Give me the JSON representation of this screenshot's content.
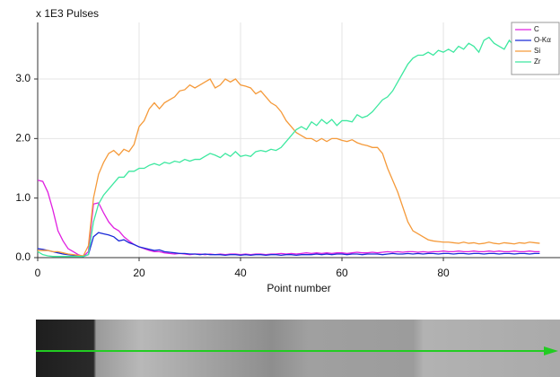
{
  "chart_data": {
    "type": "line",
    "y_axis_label": "x 1E3 Pulses",
    "x_axis_label": "Point number",
    "x": [
      0,
      1,
      2,
      3,
      4,
      5,
      6,
      7,
      8,
      9,
      10,
      11,
      12,
      13,
      14,
      15,
      16,
      17,
      18,
      19,
      20,
      21,
      22,
      23,
      24,
      25,
      26,
      27,
      28,
      29,
      30,
      31,
      32,
      33,
      34,
      35,
      36,
      37,
      38,
      39,
      40,
      41,
      42,
      43,
      44,
      45,
      46,
      47,
      48,
      49,
      50,
      51,
      52,
      53,
      54,
      55,
      56,
      57,
      58,
      59,
      60,
      61,
      62,
      63,
      64,
      65,
      66,
      67,
      68,
      69,
      70,
      71,
      72,
      73,
      74,
      75,
      76,
      77,
      78,
      79,
      80,
      81,
      82,
      83,
      84,
      85,
      86,
      87,
      88,
      89,
      90,
      91,
      92,
      93,
      94,
      95,
      96,
      97,
      98,
      99
    ],
    "xlim": [
      0,
      103
    ],
    "xticks": [
      0,
      20,
      40,
      60,
      80
    ],
    "ylim": [
      0,
      3.95
    ],
    "yticks": [
      {
        "value": 0,
        "label": "0.0"
      },
      {
        "value": 1,
        "label": "1.0"
      },
      {
        "value": 2,
        "label": "2.0"
      },
      {
        "value": 3,
        "label": "3.0"
      }
    ],
    "grid": true,
    "legend": "top-right",
    "series": [
      {
        "name": "C",
        "color": "#e020e0",
        "values": [
          1.3,
          1.28,
          1.1,
          0.8,
          0.45,
          0.28,
          0.15,
          0.1,
          0.05,
          0.02,
          0.1,
          0.9,
          0.92,
          0.75,
          0.6,
          0.5,
          0.45,
          0.35,
          0.28,
          0.22,
          0.18,
          0.15,
          0.12,
          0.1,
          0.1,
          0.08,
          0.07,
          0.06,
          0.07,
          0.06,
          0.05,
          0.06,
          0.06,
          0.05,
          0.06,
          0.05,
          0.06,
          0.05,
          0.06,
          0.06,
          0.05,
          0.06,
          0.05,
          0.06,
          0.06,
          0.05,
          0.06,
          0.06,
          0.07,
          0.06,
          0.07,
          0.06,
          0.07,
          0.08,
          0.07,
          0.08,
          0.07,
          0.08,
          0.07,
          0.08,
          0.08,
          0.07,
          0.08,
          0.09,
          0.08,
          0.08,
          0.09,
          0.08,
          0.09,
          0.1,
          0.09,
          0.1,
          0.09,
          0.1,
          0.1,
          0.09,
          0.1,
          0.09,
          0.1,
          0.1,
          0.11,
          0.1,
          0.1,
          0.11,
          0.1,
          0.1,
          0.11,
          0.1,
          0.1,
          0.11,
          0.1,
          0.11,
          0.1,
          0.1,
          0.11,
          0.1,
          0.1,
          0.11,
          0.1,
          0.1
        ]
      },
      {
        "name": "O-Kα",
        "color": "#1a2ad8",
        "values": [
          0.15,
          0.14,
          0.12,
          0.1,
          0.08,
          0.06,
          0.05,
          0.04,
          0.03,
          0.02,
          0.05,
          0.35,
          0.42,
          0.4,
          0.38,
          0.35,
          0.28,
          0.3,
          0.25,
          0.22,
          0.18,
          0.16,
          0.14,
          0.12,
          0.13,
          0.1,
          0.09,
          0.08,
          0.07,
          0.07,
          0.06,
          0.06,
          0.05,
          0.06,
          0.05,
          0.05,
          0.05,
          0.04,
          0.05,
          0.05,
          0.04,
          0.05,
          0.04,
          0.05,
          0.05,
          0.04,
          0.05,
          0.05,
          0.04,
          0.05,
          0.05,
          0.04,
          0.05,
          0.05,
          0.05,
          0.06,
          0.05,
          0.06,
          0.05,
          0.06,
          0.06,
          0.05,
          0.06,
          0.06,
          0.05,
          0.06,
          0.06,
          0.06,
          0.05,
          0.06,
          0.07,
          0.06,
          0.06,
          0.07,
          0.06,
          0.07,
          0.06,
          0.07,
          0.07,
          0.06,
          0.07,
          0.07,
          0.06,
          0.07,
          0.07,
          0.06,
          0.07,
          0.07,
          0.06,
          0.07,
          0.07,
          0.06,
          0.07,
          0.07,
          0.06,
          0.07,
          0.07,
          0.06,
          0.07,
          0.07
        ]
      },
      {
        "name": "Si",
        "color": "#f59a3a",
        "values": [
          0.12,
          0.12,
          0.12,
          0.1,
          0.1,
          0.08,
          0.06,
          0.05,
          0.04,
          0.03,
          0.2,
          1.0,
          1.4,
          1.6,
          1.75,
          1.8,
          1.72,
          1.82,
          1.78,
          1.9,
          2.2,
          2.3,
          2.5,
          2.6,
          2.5,
          2.6,
          2.65,
          2.7,
          2.8,
          2.82,
          2.9,
          2.85,
          2.9,
          2.95,
          3.0,
          2.85,
          2.9,
          3.0,
          2.95,
          3.0,
          2.9,
          2.88,
          2.85,
          2.75,
          2.8,
          2.7,
          2.6,
          2.55,
          2.45,
          2.3,
          2.2,
          2.1,
          2.05,
          2.0,
          2.0,
          1.95,
          2.0,
          1.95,
          2.0,
          2.0,
          1.97,
          1.95,
          1.98,
          1.93,
          1.9,
          1.88,
          1.85,
          1.85,
          1.75,
          1.5,
          1.3,
          1.1,
          0.85,
          0.6,
          0.45,
          0.4,
          0.35,
          0.3,
          0.28,
          0.27,
          0.26,
          0.26,
          0.25,
          0.24,
          0.26,
          0.24,
          0.25,
          0.23,
          0.24,
          0.26,
          0.24,
          0.23,
          0.25,
          0.24,
          0.23,
          0.25,
          0.24,
          0.26,
          0.25,
          0.24
        ]
      },
      {
        "name": "Zr",
        "color": "#3ee8a0",
        "values": [
          0.1,
          0.05,
          0.03,
          0.02,
          0.02,
          0.02,
          0.02,
          0.02,
          0.02,
          0.02,
          0.05,
          0.6,
          0.9,
          1.05,
          1.15,
          1.25,
          1.35,
          1.35,
          1.45,
          1.45,
          1.5,
          1.5,
          1.55,
          1.58,
          1.55,
          1.6,
          1.58,
          1.62,
          1.6,
          1.65,
          1.62,
          1.65,
          1.65,
          1.7,
          1.75,
          1.72,
          1.68,
          1.75,
          1.7,
          1.78,
          1.7,
          1.72,
          1.7,
          1.78,
          1.8,
          1.78,
          1.82,
          1.8,
          1.85,
          1.95,
          2.05,
          2.15,
          2.2,
          2.15,
          2.28,
          2.22,
          2.32,
          2.25,
          2.32,
          2.22,
          2.3,
          2.3,
          2.28,
          2.4,
          2.35,
          2.38,
          2.45,
          2.55,
          2.65,
          2.7,
          2.8,
          2.95,
          3.1,
          3.25,
          3.35,
          3.4,
          3.4,
          3.45,
          3.4,
          3.48,
          3.45,
          3.5,
          3.45,
          3.55,
          3.5,
          3.6,
          3.55,
          3.45,
          3.65,
          3.7,
          3.6,
          3.55,
          3.5,
          3.65,
          3.55,
          3.65,
          3.6,
          3.55,
          3.65,
          3.6
        ]
      }
    ]
  }
}
